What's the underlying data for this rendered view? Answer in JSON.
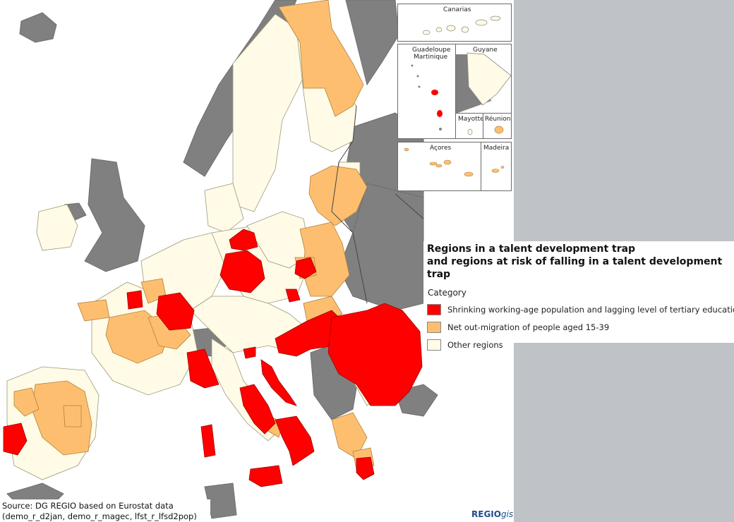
{
  "legend": {
    "title_line1": "Regions in a talent development trap",
    "title_line2": "and regions at risk of falling in a talent development trap",
    "category_label": "Category",
    "items": [
      {
        "label": "Shrinking working-age population and lagging level of tertiary education",
        "color": "#ff0000"
      },
      {
        "label": "Net out-migration of people aged 15-39",
        "color": "#fdbf6f"
      },
      {
        "label": "Other regions",
        "color": "#fffbe6"
      }
    ]
  },
  "insets": {
    "canarias": "Canarias",
    "guadeloupe": "Guadeloupe",
    "martinique": "Martinique",
    "guyane": "Guyane",
    "mayotte": "Mayotte",
    "reunion": "Réunion",
    "acores": "Açores",
    "madeira": "Madeira"
  },
  "source": {
    "line1": "Source: DG REGIO based on Eurostat data",
    "line2": "(demo_r_d2jan, demo_r_magec, lfst_r_lfsd2pop)"
  },
  "brand": {
    "regio": "REGIO",
    "gis": "gis",
    "color": "#1f4e8c"
  },
  "colors": {
    "sea": "#ffffff",
    "non_eu": "#808080",
    "red": "#ff0000",
    "orange": "#fdbf6f",
    "other": "#fffbe6"
  }
}
